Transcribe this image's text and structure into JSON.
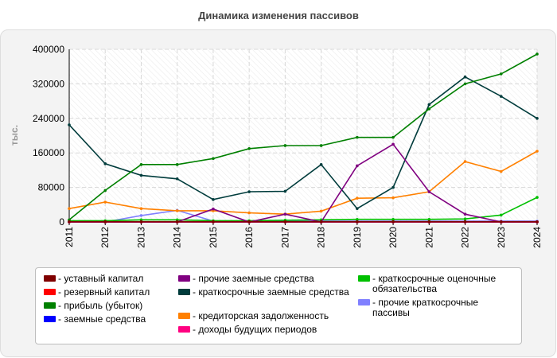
{
  "chart_data": {
    "type": "line",
    "title": "Динамика изменения пассивов",
    "ylabel": "тыс.",
    "xlabel": "",
    "x": [
      "2011",
      "2012",
      "2013",
      "2014",
      "2015",
      "2016",
      "2017",
      "2018",
      "2019",
      "2020",
      "2021",
      "2022",
      "2023",
      "2024"
    ],
    "ylim": [
      0,
      400000
    ],
    "yticks": [
      "0",
      "80000",
      "160000",
      "240000",
      "320000",
      "400000"
    ],
    "grid": true,
    "legend_position": "bottom",
    "series": [
      {
        "name": "- уставный капитал",
        "color": "#7f0000",
        "values": [
          500,
          500,
          500,
          500,
          500,
          500,
          500,
          500,
          500,
          500,
          500,
          500,
          500,
          500
        ]
      },
      {
        "name": "- резервный капитал",
        "color": "#ff0000",
        "values": [
          0,
          0,
          0,
          0,
          0,
          0,
          0,
          0,
          0,
          0,
          0,
          0,
          0,
          0
        ]
      },
      {
        "name": "- прибыль (убыток)",
        "color": "#008000",
        "values": [
          5000,
          73000,
          133000,
          133000,
          147000,
          170000,
          177000,
          177000,
          196000,
          196000,
          262000,
          320000,
          343000,
          389000
        ]
      },
      {
        "name": "- заемные средства",
        "color": "#0000ff",
        "values": [
          0,
          0,
          0,
          0,
          0,
          0,
          0,
          0,
          0,
          0,
          0,
          0,
          0,
          0
        ]
      },
      {
        "name": "- прочие заемные средства",
        "color": "#800080",
        "values": [
          0,
          0,
          0,
          0,
          30000,
          0,
          18000,
          0,
          130000,
          180000,
          70000,
          18000,
          0,
          0
        ]
      },
      {
        "name": "- краткосрочные заемные средства",
        "color": "#003c3c",
        "values": [
          225000,
          135000,
          108000,
          100000,
          52000,
          70000,
          71000,
          133000,
          31000,
          80000,
          272000,
          336000,
          291000,
          240000
        ]
      },
      {
        "name": "- кредиторская задолженность",
        "color": "#ff8000",
        "values": [
          31000,
          46000,
          31000,
          26000,
          26000,
          21000,
          18000,
          25000,
          55000,
          56000,
          70000,
          140000,
          117000,
          164000
        ]
      },
      {
        "name": "- доходы будущих периодов",
        "color": "#ff0080",
        "values": [
          0,
          0,
          0,
          0,
          0,
          0,
          0,
          0,
          0,
          0,
          0,
          0,
          0,
          0
        ]
      },
      {
        "name": "- краткосрочные оценочные обязательства",
        "color": "#00c000",
        "values": [
          3000,
          3000,
          5000,
          5000,
          3000,
          3000,
          4000,
          5000,
          6000,
          6000,
          6000,
          7000,
          16000,
          57000
        ]
      },
      {
        "name": "- прочие краткосрочные пассивы",
        "color": "#8080ff",
        "values": [
          0,
          0,
          15000,
          27000,
          2000,
          2000,
          2000,
          2000,
          2000,
          2000,
          2000,
          2000,
          2000,
          2000
        ]
      }
    ]
  }
}
